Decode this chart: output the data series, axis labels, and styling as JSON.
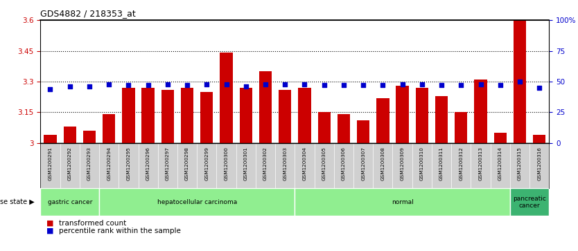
{
  "title": "GDS4882 / 218353_at",
  "samples": [
    "GSM1200291",
    "GSM1200292",
    "GSM1200293",
    "GSM1200294",
    "GSM1200295",
    "GSM1200296",
    "GSM1200297",
    "GSM1200298",
    "GSM1200299",
    "GSM1200300",
    "GSM1200301",
    "GSM1200302",
    "GSM1200303",
    "GSM1200304",
    "GSM1200305",
    "GSM1200306",
    "GSM1200307",
    "GSM1200308",
    "GSM1200309",
    "GSM1200310",
    "GSM1200311",
    "GSM1200312",
    "GSM1200313",
    "GSM1200314",
    "GSM1200315",
    "GSM1200316"
  ],
  "bar_values": [
    3.04,
    3.08,
    3.06,
    3.14,
    3.27,
    3.27,
    3.26,
    3.27,
    3.25,
    3.44,
    3.27,
    3.35,
    3.26,
    3.27,
    3.15,
    3.14,
    3.11,
    3.22,
    3.28,
    3.27,
    3.23,
    3.15,
    3.31,
    3.05,
    3.6,
    3.04
  ],
  "percentile_values": [
    44,
    46,
    46,
    48,
    47,
    47,
    48,
    47,
    48,
    48,
    46,
    48,
    48,
    48,
    47,
    47,
    47,
    47,
    48,
    48,
    47,
    47,
    48,
    47,
    50,
    45
  ],
  "ylim_left": [
    3.0,
    3.6
  ],
  "ylim_right": [
    0,
    100
  ],
  "yticks_left": [
    3.0,
    3.15,
    3.3,
    3.45,
    3.6
  ],
  "yticks_right": [
    0,
    25,
    50,
    75,
    100
  ],
  "ytick_labels_left": [
    "3",
    "3.15",
    "3.3",
    "3.45",
    "3.6"
  ],
  "ytick_labels_right": [
    "0",
    "25",
    "50",
    "75",
    "100%"
  ],
  "hlines": [
    3.15,
    3.3,
    3.45
  ],
  "bar_color": "#cc0000",
  "percentile_color": "#0000cc",
  "group_ranges": [
    {
      "label": "gastric cancer",
      "start": 0,
      "end": 2,
      "color": "#90EE90"
    },
    {
      "label": "hepatocellular carcinoma",
      "start": 3,
      "end": 12,
      "color": "#90EE90"
    },
    {
      "label": "normal",
      "start": 13,
      "end": 23,
      "color": "#90EE90"
    },
    {
      "label": "pancreatic\ncancer",
      "start": 24,
      "end": 25,
      "color": "#3CB371"
    }
  ],
  "legend_items": [
    {
      "label": "transformed count",
      "color": "#cc0000"
    },
    {
      "label": "percentile rank within the sample",
      "color": "#0000cc"
    }
  ],
  "background_color": "#ffffff",
  "plot_bg_color": "#ffffff",
  "xtick_bg_color": "#d0d0d0",
  "bar_width": 0.65
}
